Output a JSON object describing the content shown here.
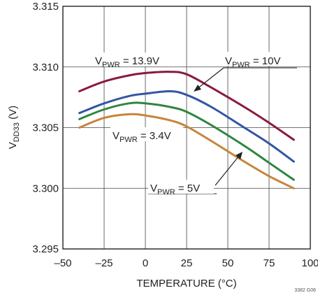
{
  "chart_data": {
    "type": "line",
    "title": "",
    "xlabel": "TEMPERATURE (°C)",
    "ylabel_main": "V",
    "ylabel_sub": "DD33",
    "ylabel_unit": " (V)",
    "xlim": [
      -50,
      100
    ],
    "ylim": [
      3.295,
      3.315
    ],
    "x_ticks": [
      -50,
      -25,
      0,
      25,
      50,
      75,
      100
    ],
    "y_ticks": [
      3.295,
      3.3,
      3.305,
      3.31,
      3.315
    ],
    "x_tick_labels": [
      "–50",
      "–25",
      "0",
      "25",
      "50",
      "75",
      "100"
    ],
    "y_tick_labels": [
      "3.295",
      "3.300",
      "3.305",
      "3.310",
      "3.315"
    ],
    "grid": true,
    "series": [
      {
        "name_main": "V",
        "name_sub": "PWR",
        "name_value": " = 13.9V",
        "color": "#8b1a3c",
        "x": [
          -40,
          -25,
          -10,
          0,
          15,
          25,
          40,
          60,
          75,
          90
        ],
        "y": [
          3.308,
          3.3088,
          3.3093,
          3.3095,
          3.3096,
          3.3094,
          3.3083,
          3.3067,
          3.3054,
          3.304
        ]
      },
      {
        "name_main": "V",
        "name_sub": "PWR",
        "name_value": " = 10V",
        "color": "#3355a5",
        "x": [
          -40,
          -25,
          -10,
          0,
          15,
          25,
          40,
          60,
          75,
          90
        ],
        "y": [
          3.3062,
          3.307,
          3.3076,
          3.3078,
          3.308,
          3.3077,
          3.3067,
          3.305,
          3.3037,
          3.3022
        ]
      },
      {
        "name_main": "V",
        "name_sub": "PWR",
        "name_value": " = 5V",
        "color": "#2e8540",
        "x": [
          -40,
          -25,
          -10,
          0,
          15,
          25,
          40,
          60,
          75,
          90
        ],
        "y": [
          3.3057,
          3.3065,
          3.307,
          3.307,
          3.3067,
          3.3063,
          3.3052,
          3.3035,
          3.3021,
          3.3007
        ]
      },
      {
        "name_main": "V",
        "name_sub": "PWR",
        "name_value": " = 3.4V",
        "color": "#c8843a",
        "x": [
          -40,
          -25,
          -10,
          0,
          15,
          25,
          40,
          60,
          75,
          90
        ],
        "y": [
          3.305,
          3.3058,
          3.3061,
          3.306,
          3.3056,
          3.3051,
          3.3039,
          3.3022,
          3.301,
          3.3
        ]
      }
    ],
    "corner_id": "3382 G06"
  }
}
